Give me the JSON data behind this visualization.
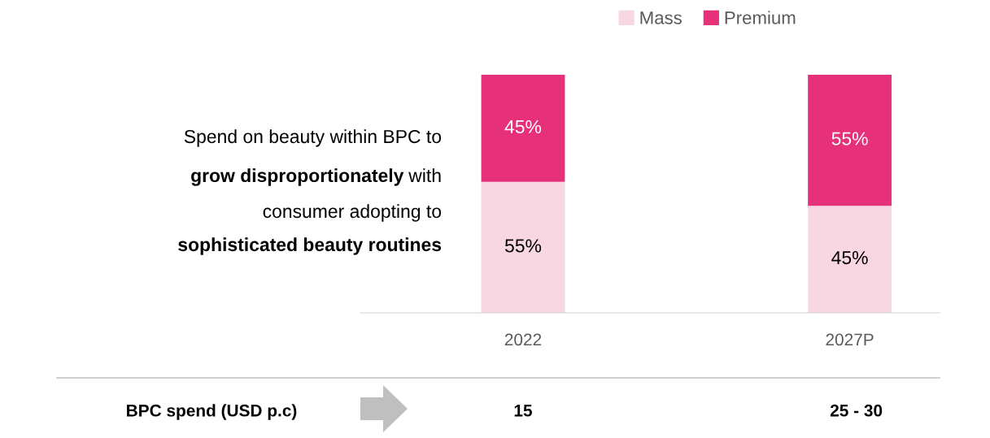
{
  "chart_data": {
    "type": "bar",
    "stacked": true,
    "categories": [
      "2022",
      "2027P"
    ],
    "series": [
      {
        "name": "Mass",
        "color": "#f8d7e3",
        "values": [
          55,
          45
        ],
        "value_labels": [
          "55%",
          "45%"
        ]
      },
      {
        "name": "Premium",
        "color": "#e6307a",
        "values": [
          45,
          55
        ],
        "value_labels": [
          "45%",
          "55%"
        ]
      }
    ],
    "legend": "top",
    "annotations": [
      "Spend on beauty within BPC to",
      "grow disproportionately",
      "with",
      "consumer adopting to",
      "sophisticated beauty routines",
      "BPC spend (USD p.c)",
      "15",
      "25 - 30"
    ]
  }
}
